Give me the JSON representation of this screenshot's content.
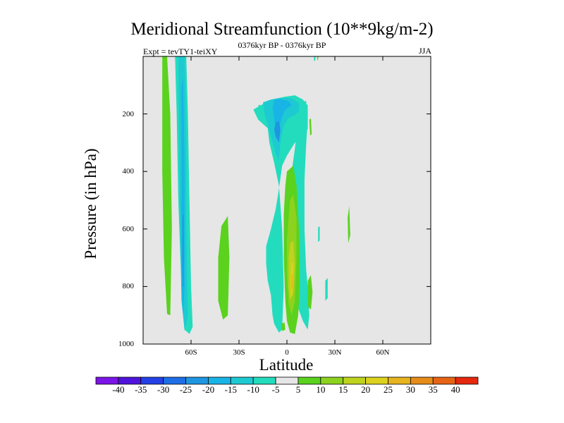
{
  "chart_data": {
    "type": "heatmap",
    "title": "Meridional Streamfunction (10**9kg/m-2)",
    "left_subtitle": "Expt = tevTY1-teiXY",
    "center_subtitle": "0376kyr BP - 0376kyr BP",
    "right_subtitle": "JJA",
    "xlabel": "Latitude",
    "ylabel": "Pressure (in hPa)",
    "xlim": [
      -90,
      90
    ],
    "ylim": [
      1000,
      0
    ],
    "x_ticks": [
      {
        "value": -60,
        "label": "60S"
      },
      {
        "value": -30,
        "label": "30S"
      },
      {
        "value": 0,
        "label": "0"
      },
      {
        "value": 30,
        "label": "30N"
      },
      {
        "value": 60,
        "label": "60N"
      }
    ],
    "y_ticks": [
      200,
      400,
      600,
      800,
      1000
    ],
    "background_color": "#e6e6e6",
    "colorbar": {
      "labels": [
        "-40",
        "-35",
        "-30",
        "-25",
        "-20",
        "-15",
        "-10",
        "-5",
        "5",
        "10",
        "15",
        "20",
        "25",
        "30",
        "35",
        "40"
      ],
      "colors": [
        "#7b14e6",
        "#4f14dc",
        "#2440e6",
        "#1e6ee6",
        "#1e96e1",
        "#19b4e6",
        "#1ecad2",
        "#23dcbe",
        "#e6e6e6",
        "#5ad21e",
        "#8cd21e",
        "#bed21e",
        "#dcd21e",
        "#e6b41e",
        "#e68c19",
        "#e66414",
        "#e6280f"
      ]
    },
    "contour_regions": [
      {
        "level": 10,
        "color": "#5ad21e",
        "points": [
          [
            -78,
            0
          ],
          [
            -75,
            0
          ],
          [
            -73,
            200
          ],
          [
            -72,
            600
          ],
          [
            -73,
            900
          ],
          [
            -75,
            895
          ],
          [
            -77,
            700
          ],
          [
            -78,
            400
          ]
        ]
      },
      {
        "level": -5,
        "color": "#23dcbe",
        "points": [
          [
            -70,
            0
          ],
          [
            -63,
            0
          ],
          [
            -62,
            200
          ],
          [
            -61,
            500
          ],
          [
            -60,
            800
          ],
          [
            -59,
            940
          ],
          [
            -61,
            965
          ],
          [
            -64,
            950
          ],
          [
            -66,
            800
          ],
          [
            -68,
            500
          ],
          [
            -69,
            200
          ]
        ]
      },
      {
        "level": -10,
        "color": "#1ecad2",
        "points": [
          [
            -68,
            0
          ],
          [
            -64,
            0
          ],
          [
            -63,
            300
          ],
          [
            -63,
            600
          ],
          [
            -62,
            900
          ],
          [
            -64,
            955
          ],
          [
            -66,
            850
          ],
          [
            -67,
            500
          ]
        ]
      },
      {
        "level": -15,
        "color": "#19b4e6",
        "points": [
          [
            -66,
            100
          ],
          [
            -65,
            80
          ],
          [
            -64,
            400
          ],
          [
            -64,
            800
          ],
          [
            -65,
            900
          ],
          [
            -66,
            800
          ],
          [
            -66,
            400
          ]
        ]
      },
      {
        "level": -20,
        "color": "#1e96e1",
        "points": [
          [
            -65.3,
            550
          ],
          [
            -64.7,
            550
          ],
          [
            -64.6,
            700
          ],
          [
            -64.8,
            800
          ],
          [
            -65.2,
            800
          ],
          [
            -65.4,
            700
          ]
        ]
      },
      {
        "level": 10,
        "color": "#5ad21e",
        "points": [
          [
            -41,
            590
          ],
          [
            -37,
            555
          ],
          [
            -36,
            700
          ],
          [
            -37,
            900
          ],
          [
            -40,
            915
          ],
          [
            -43,
            850
          ],
          [
            -43,
            700
          ]
        ]
      },
      {
        "level": -5,
        "color": "#23dcbe",
        "points": [
          [
            -21,
            185
          ],
          [
            -18,
            175
          ],
          [
            -10,
            150
          ],
          [
            -1,
            140
          ],
          [
            5,
            135
          ],
          [
            10,
            150
          ],
          [
            13,
            170
          ],
          [
            13,
            250
          ],
          [
            11,
            290
          ],
          [
            5,
            300
          ],
          [
            0,
            345
          ],
          [
            -3,
            380
          ],
          [
            -5,
            460
          ],
          [
            -7,
            530
          ],
          [
            -10,
            600
          ],
          [
            -13,
            660
          ],
          [
            -13,
            720
          ],
          [
            -12,
            780
          ],
          [
            -10,
            830
          ],
          [
            -9,
            900
          ],
          [
            -8,
            930
          ],
          [
            -5,
            960
          ],
          [
            -3,
            950
          ],
          [
            -2,
            800
          ],
          [
            -3,
            600
          ],
          [
            -5,
            450
          ],
          [
            -8,
            370
          ],
          [
            -11,
            300
          ],
          [
            -12,
            250
          ],
          [
            -18,
            220
          ]
        ]
      },
      {
        "level": -10,
        "color": "#1ecad2",
        "points": [
          [
            -15,
            160
          ],
          [
            -10,
            150
          ],
          [
            -4,
            145
          ],
          [
            3,
            145
          ],
          [
            7,
            160
          ],
          [
            9,
            180
          ],
          [
            6,
            200
          ],
          [
            1,
            215
          ],
          [
            -2,
            240
          ],
          [
            -4,
            300
          ],
          [
            -5,
            360
          ],
          [
            -7,
            340
          ],
          [
            -9,
            300
          ],
          [
            -12,
            240
          ],
          [
            -14,
            200
          ]
        ]
      },
      {
        "level": -15,
        "color": "#19b4e6",
        "points": [
          [
            -8,
            150
          ],
          [
            -4,
            148
          ],
          [
            1,
            155
          ],
          [
            3,
            170
          ],
          [
            -1,
            185
          ],
          [
            -3,
            210
          ],
          [
            -5,
            250
          ],
          [
            -7,
            260
          ],
          [
            -8,
            215
          ],
          [
            -9,
            180
          ]
        ]
      },
      {
        "level": -20,
        "color": "#1e96e1",
        "points": [
          [
            -7,
            230
          ],
          [
            -5,
            225
          ],
          [
            -4,
            255
          ],
          [
            -5,
            300
          ],
          [
            -7,
            280
          ],
          [
            -8,
            255
          ]
        ]
      },
      {
        "level": -5,
        "color": "#23dcbe",
        "points": [
          [
            8,
            160
          ],
          [
            12,
            155
          ],
          [
            13,
            220
          ],
          [
            12,
            310
          ],
          [
            11,
            430
          ],
          [
            11,
            600
          ],
          [
            12,
            740
          ],
          [
            13,
            800
          ],
          [
            14,
            900
          ],
          [
            13,
            950
          ],
          [
            10,
            920
          ],
          [
            6,
            860
          ],
          [
            4,
            700
          ],
          [
            3,
            600
          ],
          [
            2,
            500
          ],
          [
            3,
            400
          ],
          [
            5,
            320
          ]
        ]
      },
      {
        "level": 10,
        "color": "#5ad21e",
        "points": [
          [
            0,
            400
          ],
          [
            4,
            380
          ],
          [
            6,
            450
          ],
          [
            7,
            550
          ],
          [
            8,
            650
          ],
          [
            8,
            800
          ],
          [
            7,
            900
          ],
          [
            5,
            965
          ],
          [
            2,
            960
          ],
          [
            0,
            920
          ],
          [
            -1,
            850
          ],
          [
            -2,
            700
          ],
          [
            -2,
            550
          ],
          [
            -1,
            450
          ]
        ]
      },
      {
        "level": 15,
        "color": "#8cd21e",
        "points": [
          [
            2,
            500
          ],
          [
            4,
            480
          ],
          [
            6,
            560
          ],
          [
            6,
            700
          ],
          [
            5,
            850
          ],
          [
            3,
            900
          ],
          [
            1,
            860
          ],
          [
            0,
            760
          ],
          [
            0,
            640
          ],
          [
            1,
            560
          ]
        ]
      },
      {
        "level": 20,
        "color": "#bed21e",
        "points": [
          [
            2,
            650
          ],
          [
            4,
            640
          ],
          [
            5,
            720
          ],
          [
            4,
            820
          ],
          [
            2,
            850
          ],
          [
            1,
            800
          ],
          [
            1,
            700
          ]
        ]
      },
      {
        "level": 25,
        "color": "#dcd21e",
        "points": [
          [
            2.7,
            720
          ],
          [
            3.8,
            715
          ],
          [
            4,
            780
          ],
          [
            3.5,
            830
          ],
          [
            2.5,
            840
          ],
          [
            2.2,
            780
          ]
        ]
      },
      {
        "level": 30,
        "color": "#e6b41e",
        "points": [
          [
            2.9,
            760
          ],
          [
            3.6,
            758
          ],
          [
            3.6,
            800
          ],
          [
            3.1,
            815
          ],
          [
            2.8,
            795
          ]
        ]
      },
      {
        "level": 10,
        "color": "#5ad21e",
        "points": [
          [
            13,
            780
          ],
          [
            15,
            760
          ],
          [
            16,
            820
          ],
          [
            15,
            880
          ],
          [
            13,
            870
          ]
        ]
      },
      {
        "level": 10,
        "color": "#5ad21e",
        "points": [
          [
            14,
            220
          ],
          [
            15,
            215
          ],
          [
            15.5,
            270
          ],
          [
            14.5,
            275
          ]
        ]
      },
      {
        "level": -5,
        "color": "#23dcbe",
        "points": [
          [
            19.5,
            595
          ],
          [
            20.5,
            590
          ],
          [
            20.5,
            640
          ],
          [
            19.5,
            645
          ]
        ]
      },
      {
        "level": -5,
        "color": "#23dcbe",
        "points": [
          [
            -18,
            170
          ],
          [
            -17,
            168
          ],
          [
            -16,
            180
          ],
          [
            -17,
            185
          ]
        ]
      },
      {
        "level": -5,
        "color": "#23dcbe",
        "points": [
          [
            17,
            0
          ],
          [
            18,
            0
          ],
          [
            17.6,
            15
          ],
          [
            16.9,
            15
          ]
        ]
      },
      {
        "level": 10,
        "color": "#5ad21e",
        "points": [
          [
            19,
            0
          ],
          [
            19.7,
            0
          ],
          [
            19.4,
            12
          ],
          [
            18.9,
            12
          ]
        ]
      },
      {
        "level": 10,
        "color": "#5ad21e",
        "points": [
          [
            38,
            560
          ],
          [
            39,
            520
          ],
          [
            39.6,
            620
          ],
          [
            38.4,
            650
          ]
        ]
      },
      {
        "level": 10,
        "color": "#5ad21e",
        "points": [
          [
            -3.5,
            930
          ],
          [
            -1.5,
            925
          ],
          [
            -1,
            950
          ],
          [
            -3,
            955
          ]
        ]
      },
      {
        "level": -5,
        "color": "#23dcbe",
        "points": [
          [
            24,
            780
          ],
          [
            25.5,
            770
          ],
          [
            25.5,
            840
          ],
          [
            24,
            850
          ]
        ]
      }
    ]
  }
}
